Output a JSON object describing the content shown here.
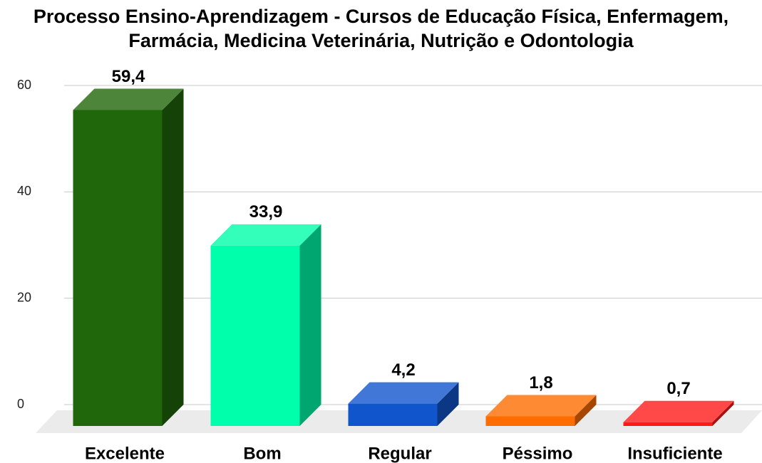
{
  "chart_data": {
    "type": "bar3d",
    "title": "Processo Ensino-Aprendizagem - Cursos de Educação Física, Enfermagem, Farmácia, Medicina Veterinária, Nutrição e Odontologia",
    "categories": [
      "Excelente",
      "Bom",
      "Regular",
      "Péssimo",
      "Insuficiente"
    ],
    "values": [
      59.4,
      33.9,
      4.2,
      1.8,
      0.7
    ],
    "value_labels": [
      "59,4",
      "33,9",
      "4,2",
      "1,8",
      "0,7"
    ],
    "colors": [
      "#20660a",
      "#00ffaa",
      "#1155cc",
      "#ff6d01",
      "#ff1a1a"
    ],
    "ylim": [
      0,
      60
    ],
    "yticks": [
      0,
      20,
      40,
      60
    ],
    "grid": true
  }
}
